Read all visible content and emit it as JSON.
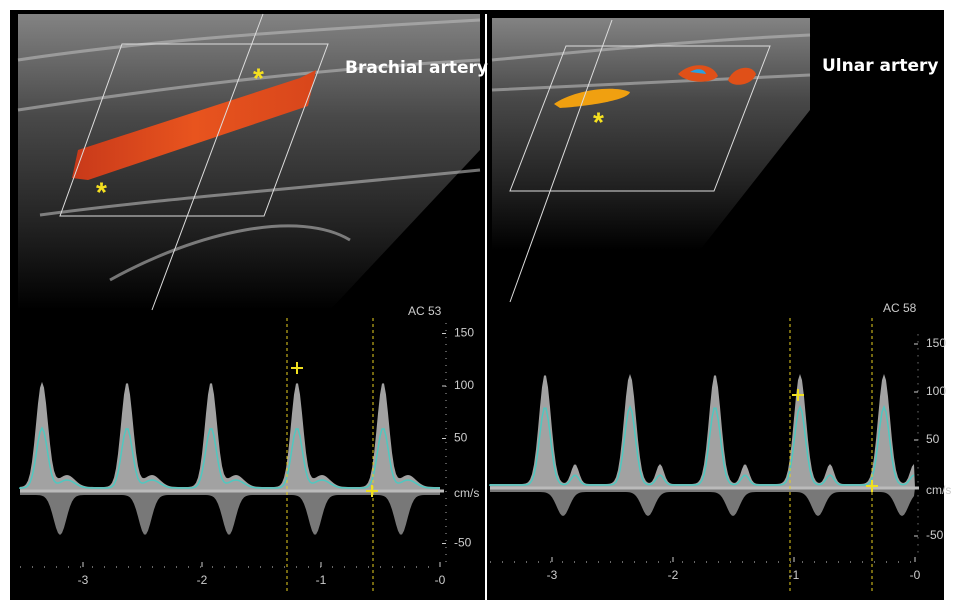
{
  "panels": [
    {
      "title": "Brachial artery",
      "ac_label": "AC 53",
      "yticks": [
        150,
        100,
        50,
        -50
      ],
      "unit": "cm/s",
      "xticks": [
        -3,
        -2,
        -1,
        {
          "value": 0,
          "label": "-0"
        }
      ],
      "markers": [
        "*",
        "*"
      ]
    },
    {
      "title": "Ulnar artery",
      "ac_label": "AC 58",
      "yticks": [
        150,
        100,
        50,
        -50
      ],
      "unit": "cm/s",
      "xticks": [
        -3,
        -2,
        -1,
        {
          "value": 0,
          "label": "-0"
        }
      ],
      "markers": [
        "*"
      ]
    }
  ]
}
